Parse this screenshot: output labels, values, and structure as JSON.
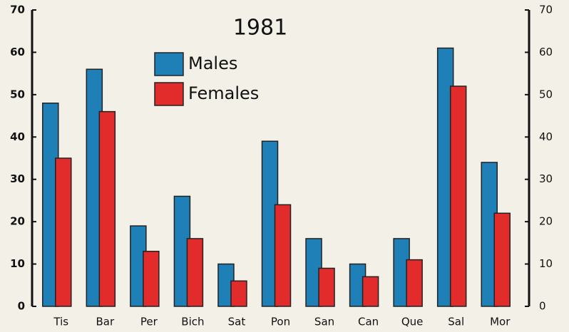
{
  "chart_data": {
    "type": "bar",
    "title": "1981",
    "categories": [
      "Tis",
      "Bar",
      "Per",
      "Bich",
      "Sat",
      "Pon",
      "San",
      "Can",
      "Que",
      "Sal",
      "Mor"
    ],
    "series": [
      {
        "name": "Males",
        "color": "#1f80b8",
        "values": [
          48,
          56,
          19,
          26,
          10,
          39,
          16,
          10,
          16,
          61,
          34
        ]
      },
      {
        "name": "Females",
        "color": "#e22b2b",
        "values": [
          35,
          46,
          13,
          16,
          6,
          24,
          9,
          7,
          11,
          52,
          22
        ]
      }
    ],
    "ylim": [
      0,
      70
    ],
    "yticks": [
      0,
      10,
      20,
      30,
      40,
      50,
      60,
      70
    ],
    "y2lim": [
      0,
      70
    ],
    "y2ticks": [
      0,
      10,
      20,
      30,
      40,
      50,
      60,
      70
    ],
    "grid": false
  }
}
